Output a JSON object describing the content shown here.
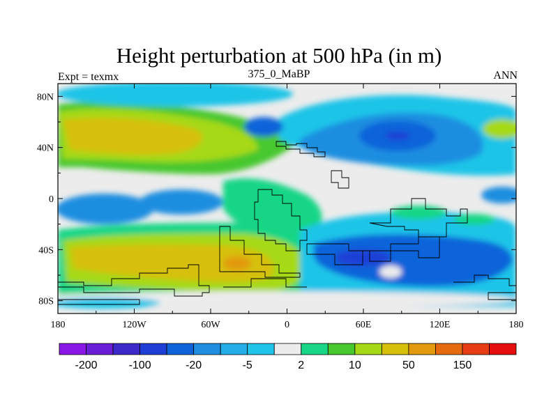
{
  "chart_data": {
    "type": "heatmap",
    "title": "Height perturbation at 500 hPa (in m)",
    "left_subtitle": "Expt = texmx",
    "center_subtitle": "375_0_MaBP",
    "right_subtitle": "ANN",
    "x_ticks": [
      "180",
      "120W",
      "60W",
      "0",
      "60E",
      "120E",
      "180"
    ],
    "y_ticks": [
      "80N",
      "40N",
      "0",
      "40S",
      "80S"
    ],
    "xlim": [
      -180,
      180
    ],
    "ylim": [
      -90,
      90
    ],
    "colorbar": {
      "colors": [
        "#8a17e6",
        "#6a1fd6",
        "#3d28c8",
        "#1e3fd6",
        "#0f63d9",
        "#1f8ee0",
        "#23aeea",
        "#1fc4e8",
        "#ececec",
        "#17d686",
        "#46c82e",
        "#a6d915",
        "#d6c00a",
        "#e29a0c",
        "#e56a0e",
        "#e63e12",
        "#e60f10"
      ],
      "labels": [
        "-200",
        "-100",
        "-20",
        "-5",
        "2",
        "10",
        "50",
        "150"
      ]
    },
    "anomaly_regions": [
      {
        "lon": -120,
        "lat": 50,
        "value": 50
      },
      {
        "lon": -140,
        "lat": 30,
        "value": 10
      },
      {
        "lon": -60,
        "lat": 20,
        "value": 10
      },
      {
        "lon": -150,
        "lat": -10,
        "value": -5
      },
      {
        "lon": -60,
        "lat": -5,
        "value": -5
      },
      {
        "lon": -120,
        "lat": -45,
        "value": 50
      },
      {
        "lon": -35,
        "lat": -50,
        "value": 150
      },
      {
        "lon": 40,
        "lat": 60,
        "value": -5
      },
      {
        "lon": -10,
        "lat": 55,
        "value": -20
      },
      {
        "lon": 95,
        "lat": 45,
        "value": -100
      },
      {
        "lon": 120,
        "lat": 30,
        "value": -20
      },
      {
        "lon": 65,
        "lat": -40,
        "value": -20
      },
      {
        "lon": 100,
        "lat": -50,
        "value": -20
      },
      {
        "lon": 155,
        "lat": -50,
        "value": -20
      },
      {
        "lon": 0,
        "lat": 10,
        "value": 10
      }
    ]
  }
}
